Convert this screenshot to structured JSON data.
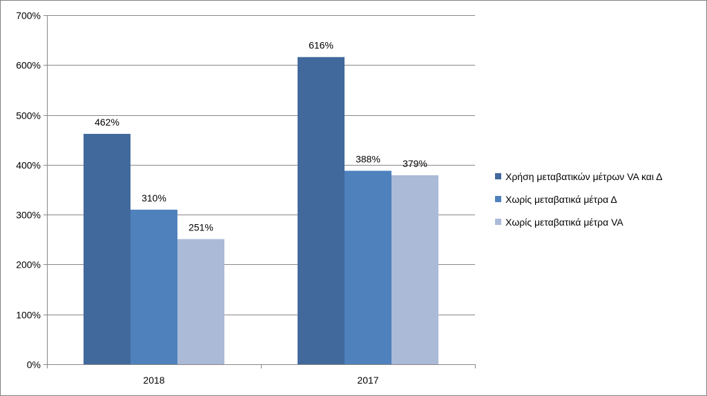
{
  "chart_data": {
    "type": "bar",
    "title": "",
    "xlabel": "",
    "ylabel": "",
    "categories": [
      "2018",
      "2017"
    ],
    "series": [
      {
        "name": "Χρήση μεταβατικών μέτρων VA και Δ",
        "values": [
          462,
          616
        ],
        "color": "#41699c"
      },
      {
        "name": "Χωρίς μεταβατικά μέτρα Δ",
        "values": [
          310,
          388
        ],
        "color": "#4f81bd"
      },
      {
        "name": "Χωρίς μεταβατικά μέτρα VA",
        "values": [
          251,
          379
        ],
        "color": "#aabad7"
      }
    ],
    "value_labels": [
      [
        "462%",
        "616%"
      ],
      [
        "310%",
        "388%"
      ],
      [
        "251%",
        "379%"
      ]
    ],
    "y_ticks": [
      0,
      100,
      200,
      300,
      400,
      500,
      600,
      700
    ],
    "y_tick_labels": [
      "0%",
      "100%",
      "200%",
      "300%",
      "400%",
      "500%",
      "600%",
      "700%"
    ],
    "ylim": [
      0,
      700
    ],
    "grid": true,
    "legend_position": "right"
  }
}
